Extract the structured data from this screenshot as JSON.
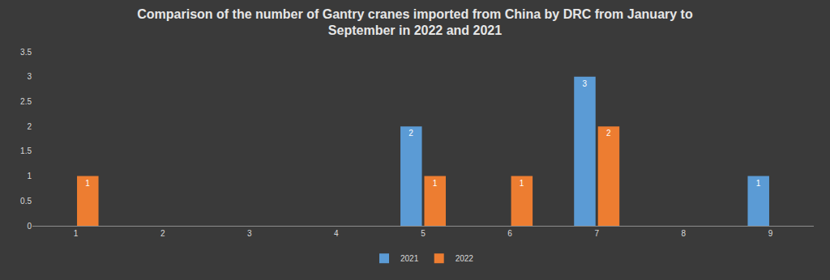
{
  "chart_data": {
    "type": "bar",
    "title": "Comparison of the number of Gantry cranes imported from China by DRC from January to\nSeptember in 2022 and 2021",
    "categories": [
      "1",
      "2",
      "3",
      "4",
      "5",
      "6",
      "7",
      "8",
      "9"
    ],
    "series": [
      {
        "name": "2021",
        "color": "#5b9bd5",
        "values": [
          null,
          null,
          null,
          null,
          2,
          null,
          3,
          null,
          1
        ]
      },
      {
        "name": "2022",
        "color": "#ed7d31",
        "values": [
          1,
          null,
          null,
          null,
          1,
          1,
          2,
          null,
          null
        ]
      }
    ],
    "ylim": [
      0,
      3.5
    ],
    "yticks": [
      0,
      0.5,
      1,
      1.5,
      2,
      2.5,
      3,
      3.5
    ],
    "grid": false,
    "legend": "bottom",
    "data_labels": true
  }
}
